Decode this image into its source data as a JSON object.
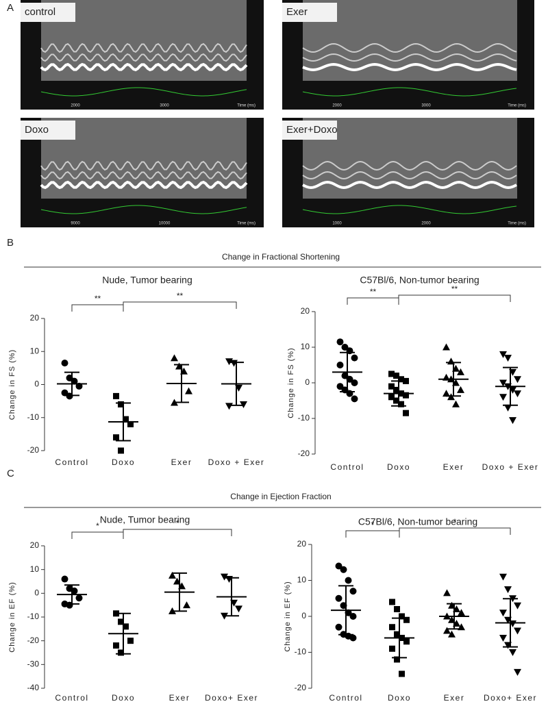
{
  "panel_labels": [
    "A",
    "B",
    "C"
  ],
  "echo": [
    {
      "label": "control",
      "time_ticks": [
        "2000",
        "3000"
      ],
      "time_label": "Time (ms)"
    },
    {
      "label": "Exer",
      "time_ticks": [
        "2000",
        "3000"
      ],
      "time_label": "Time (ms)"
    },
    {
      "label": "Doxo",
      "time_ticks": [
        "9000",
        "10000"
      ],
      "time_label": "Time (ms)"
    },
    {
      "label": "Exer+Doxo",
      "time_ticks": [
        "1000",
        "2000"
      ],
      "time_label": "Time (ms)"
    }
  ],
  "sections": [
    "Change in Fractional Shortening",
    "Change in Ejection Fraction"
  ],
  "chart_data": [
    {
      "type": "scatter",
      "title": "Nude, Tumor bearing",
      "ylabel": "Change in FS (%)",
      "categories": [
        "Control",
        "Doxo",
        "Exer",
        "Doxo + Exer"
      ],
      "markers": [
        "circle",
        "square",
        "triangle",
        "triangle-down"
      ],
      "color": "#000000",
      "points": [
        [
          6.5,
          2,
          1,
          -0.5,
          -2.5,
          -3.5
        ],
        [
          -3.5,
          -6,
          -10.5,
          -12,
          -16,
          -20
        ],
        [
          8,
          5.5,
          4,
          -2,
          -5.5
        ],
        [
          7,
          6.5,
          -1,
          -6,
          -6.5
        ]
      ],
      "means": [
        0.2,
        -11.3,
        0.3,
        0.2
      ],
      "sds": [
        3.5,
        5.7,
        5.7,
        6.5
      ],
      "ylim": [
        -20,
        20
      ],
      "yticks": [
        -20,
        -10,
        0,
        10,
        20
      ],
      "annotations": [
        "**",
        "**"
      ]
    },
    {
      "type": "scatter",
      "title": "C57Bl/6, Non-tumor bearing",
      "ylabel": "Change in FS (%)",
      "categories": [
        "Control",
        "Doxo",
        "Exer",
        "Doxo + Exer"
      ],
      "markers": [
        "circle",
        "square",
        "triangle",
        "triangle-down"
      ],
      "color": "#000000",
      "points": [
        [
          11.5,
          10,
          9,
          7,
          5,
          2,
          1,
          0,
          -1,
          -2,
          -3,
          -4.5
        ],
        [
          2.5,
          2,
          1,
          0.5,
          -1,
          -2,
          -3,
          -3.5,
          -4,
          -5,
          -6,
          -8.5
        ],
        [
          10,
          6,
          4,
          3,
          1.5,
          1,
          0,
          -2,
          -3,
          -4,
          -6
        ],
        [
          8,
          7,
          3,
          1,
          0,
          -1,
          -2,
          -3,
          -4,
          -7,
          -10.5
        ]
      ],
      "means": [
        3,
        -3,
        1,
        -1
      ],
      "sds": [
        5.5,
        3.5,
        4.7,
        5.3
      ],
      "ylim": [
        -20,
        20
      ],
      "yticks": [
        -20,
        -10,
        0,
        10,
        20
      ],
      "annotations": [
        "**",
        "**"
      ]
    },
    {
      "type": "scatter",
      "title": "Nude, Tumor bearing",
      "ylabel": "Change in EF (%)",
      "categories": [
        "Control",
        "Doxo",
        "Exer",
        "Doxo+ Exer"
      ],
      "markers": [
        "circle",
        "square",
        "triangle",
        "triangle-down"
      ],
      "color": "#000000",
      "points": [
        [
          6,
          2,
          1,
          -2,
          -4.5,
          -5
        ],
        [
          -8.5,
          -12,
          -14,
          -20,
          -22,
          -25
        ],
        [
          7.5,
          5,
          3,
          -5,
          -7.5
        ],
        [
          7,
          6,
          -4,
          -6.5,
          -9.5
        ]
      ],
      "means": [
        -0.5,
        -17,
        0.5,
        -1.5
      ],
      "sds": [
        4,
        8.5,
        8,
        8
      ],
      "ylim": [
        -40,
        20
      ],
      "yticks": [
        -40,
        -30,
        -20,
        -10,
        0,
        10,
        20
      ],
      "annotations": [
        "*",
        "*"
      ]
    },
    {
      "type": "scatter",
      "title": "C57Bl/6, Non-tumor bearing",
      "ylabel": "Change in EF (%)",
      "categories": [
        "Control",
        "Doxo",
        "Exer",
        "Doxo+ Exer"
      ],
      "markers": [
        "circle",
        "square",
        "triangle",
        "triangle-down"
      ],
      "color": "#000000",
      "points": [
        [
          14,
          13,
          10,
          7,
          5,
          3,
          1,
          0,
          -3,
          -5,
          -5.5,
          -6
        ],
        [
          4,
          2,
          0,
          -1,
          -3,
          -5,
          -6,
          -7,
          -9,
          -12,
          -16
        ],
        [
          6.5,
          3,
          2,
          1,
          0,
          -1,
          -2,
          -3,
          -4,
          -5
        ],
        [
          11,
          7.5,
          5,
          3,
          1,
          -1,
          -2,
          -4,
          -6,
          -8,
          -10,
          -15.5
        ]
      ],
      "means": [
        1.7,
        -6,
        0,
        -1.8
      ],
      "sds": [
        6.8,
        5.5,
        3.5,
        6.7
      ],
      "ylim": [
        -20,
        20
      ],
      "yticks": [
        -20,
        -10,
        0,
        10,
        20
      ],
      "annotations": [
        "*",
        "*"
      ]
    }
  ]
}
